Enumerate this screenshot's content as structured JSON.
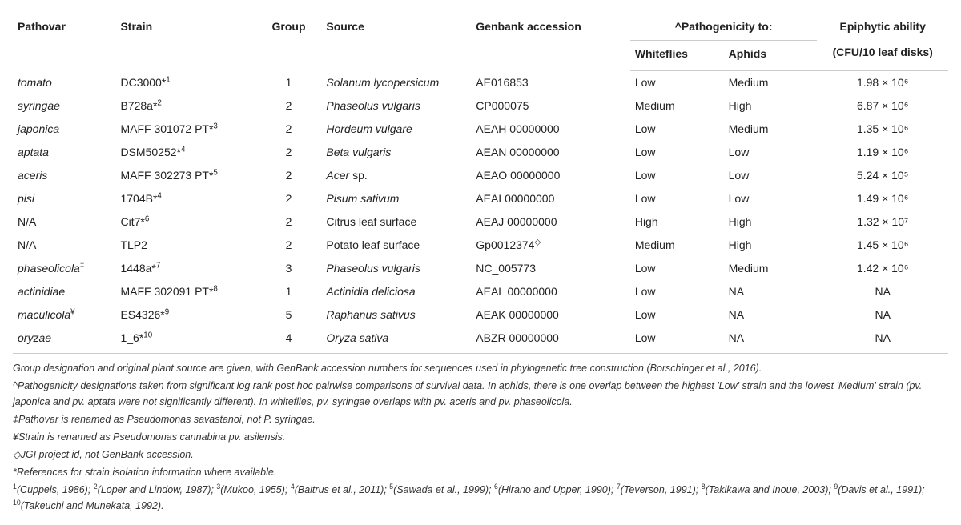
{
  "headers": {
    "pathovar": "Pathovar",
    "strain": "Strain",
    "group": "Group",
    "source": "Source",
    "genbank": "Genbank accession",
    "pathogenicity": "^Pathogenicity to:",
    "whiteflies": "Whiteflies",
    "aphids": "Aphids",
    "epiphytic": "Epiphytic ability",
    "epiphytic_sub": "(CFU/10 leaf disks)"
  },
  "col_widths": {
    "pathovar": "11%",
    "strain": "15%",
    "group": "7%",
    "source": "16%",
    "genbank": "17%",
    "wf": "10%",
    "aph": "10%",
    "epi": "14%"
  },
  "rows": [
    {
      "pathovar": "tomato",
      "pathovar_style": "italic",
      "strain": "DC3000*",
      "strain_sup": "1",
      "group": "1",
      "source": "Solanum lycopersicum",
      "genbank": "AE016853",
      "wf": "Low",
      "aph": "Medium",
      "epi": "1.98 × 10⁶"
    },
    {
      "pathovar": "syringae",
      "pathovar_style": "italic",
      "strain": "B728a*",
      "strain_sup": "2",
      "group": "2",
      "source": "Phaseolus vulgaris",
      "genbank": "CP000075",
      "wf": "Medium",
      "aph": "High",
      "epi": "6.87 × 10⁶"
    },
    {
      "pathovar": "japonica",
      "pathovar_style": "italic",
      "strain": "MAFF 301072 PT*",
      "strain_sup": "3",
      "group": "2",
      "source": "Hordeum vulgare",
      "genbank": "AEAH 00000000",
      "wf": "Low",
      "aph": "Medium",
      "epi": "1.35 × 10⁶"
    },
    {
      "pathovar": "aptata",
      "pathovar_style": "italic",
      "strain": "DSM50252*",
      "strain_sup": "4",
      "group": "2",
      "source": "Beta vulgaris",
      "genbank": "AEAN 00000000",
      "wf": "Low",
      "aph": "Low",
      "epi": "1.19 × 10⁶"
    },
    {
      "pathovar": "aceris",
      "pathovar_style": "italic",
      "strain": "MAFF 302273 PT*",
      "strain_sup": "5",
      "group": "2",
      "source": "Acer sp.",
      "source_partial_roman": " sp.",
      "genbank": "AEAO 00000000",
      "wf": "Low",
      "aph": "Low",
      "epi": "5.24 × 10⁵"
    },
    {
      "pathovar": "pisi",
      "pathovar_style": "italic",
      "strain": "1704B*",
      "strain_sup": "4",
      "group": "2",
      "source": "Pisum sativum",
      "genbank": "AEAI 00000000",
      "wf": "Low",
      "aph": "Low",
      "epi": "1.49 × 10⁶"
    },
    {
      "pathovar": "N/A",
      "pathovar_style": "",
      "strain": "Cit7*",
      "strain_sup": "6",
      "group": "2",
      "source": "Citrus leaf surface",
      "source_style": "",
      "genbank": "AEAJ 00000000",
      "wf": "High",
      "aph": "High",
      "epi": "1.32 × 10⁷"
    },
    {
      "pathovar": "N/A",
      "pathovar_style": "",
      "strain": "TLP2",
      "strain_sup": "",
      "group": "2",
      "source": "Potato leaf surface",
      "source_style": "",
      "genbank": "Gp0012374",
      "genbank_sup": "◇",
      "wf": "Medium",
      "aph": "High",
      "epi": "1.45 × 10⁶"
    },
    {
      "pathovar": "phaseolicola",
      "pathovar_sup": "‡",
      "pathovar_style": "italic",
      "strain": "1448a*",
      "strain_sup": "7",
      "group": "3",
      "source": "Phaseolus vulgaris",
      "genbank": "NC_005773",
      "wf": "Low",
      "aph": "Medium",
      "epi": "1.42 × 10⁶"
    },
    {
      "pathovar": "actinidiae",
      "pathovar_style": "italic",
      "strain": "MAFF 302091 PT*",
      "strain_sup": "8",
      "group": "1",
      "source": "Actinidia deliciosa",
      "genbank": "AEAL 00000000",
      "wf": "Low",
      "aph": "NA",
      "epi": "NA"
    },
    {
      "pathovar": "maculicola",
      "pathovar_sup": "¥",
      "pathovar_style": "italic",
      "strain": "ES4326*",
      "strain_sup": "9",
      "group": "5",
      "source": "Raphanus sativus",
      "genbank": "AEAK 00000000",
      "wf": "Low",
      "aph": "NA",
      "epi": "NA"
    },
    {
      "pathovar": "oryzae",
      "pathovar_style": "italic",
      "strain": "1_6*",
      "strain_sup": "10",
      "group": "4",
      "source": "Oryza sativa",
      "genbank": "ABZR 00000000",
      "wf": "Low",
      "aph": "NA",
      "epi": "NA"
    }
  ],
  "footnotes": {
    "main": "Group designation and original plant source are given, with GenBank accession numbers for sequences used in phylogenetic tree construction (Borschinger et al., 2016).",
    "caret": "^Pathogenicity designations taken from significant log rank post hoc pairwise comparisons of survival data. In aphids, there is one overlap between the highest 'Low' strain and the lowest 'Medium' strain (pv. japonica and pv. aptata were not significantly different). In whiteflies, pv. syringae overlaps with pv. aceris and pv. phaseolicola.",
    "dagger": "‡Pathovar is renamed as Pseudomonas savastanoi, not P. syringae.",
    "yen": "¥Strain is renamed as Pseudomonas cannabina pv. asilensis.",
    "diamond": "◇JGI project id, not GenBank accession.",
    "star": "*References for strain isolation information where available.",
    "refs": [
      {
        "n": "1",
        "t": "(Cuppels, 1986)"
      },
      {
        "n": "2",
        "t": "(Loper and Lindow, 1987)"
      },
      {
        "n": "3",
        "t": "(Mukoo, 1955)"
      },
      {
        "n": "4",
        "t": "(Baltrus et al., 2011)"
      },
      {
        "n": "5",
        "t": "(Sawada et al., 1999)"
      },
      {
        "n": "6",
        "t": "(Hirano and Upper, 1990)"
      },
      {
        "n": "7",
        "t": "(Teverson, 1991)"
      },
      {
        "n": "8",
        "t": "(Takikawa and Inoue, 2003)"
      },
      {
        "n": "9",
        "t": "(Davis et al., 1991)"
      },
      {
        "n": "10",
        "t": "(Takeuchi and Munekata, 1992)"
      }
    ]
  },
  "style": {
    "border_color": "#cccccc",
    "text_color": "#222222",
    "footnote_color": "#333333",
    "bg": "#ffffff",
    "header_fontsize": 14,
    "body_fontsize": 14,
    "footnote_fontsize": 12.5
  }
}
